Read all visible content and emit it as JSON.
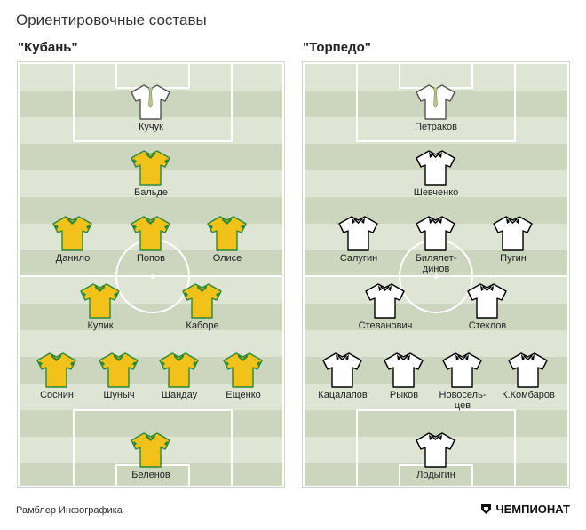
{
  "title": "Ориентировочные составы",
  "footer": {
    "source": "Рамблер Инфографика",
    "brand": "ЧЕМПИОНАТ"
  },
  "teams": [
    {
      "name": "\"Кубань\"",
      "goalkeeper": "Кучук",
      "players": [
        "Бальде",
        "Данило",
        "Попов",
        "Олисе",
        "Кулик",
        "Каборе",
        "Соснин",
        "Шуныч",
        "Шандау",
        "Ещенко",
        "Беленов"
      ]
    },
    {
      "name": "\"Торпедо\"",
      "goalkeeper": "Петраков",
      "players": [
        "Шевченко",
        "Салугин",
        "Билялет-\nдинов",
        "Пугин",
        "Стеванович",
        "Стеклов",
        "Кацалапов",
        "Рыков",
        "Новосель-\nцев",
        "К.Комбаров",
        "Лодыгин"
      ]
    }
  ],
  "colors": {
    "kuban_shirt": "#f2c21a",
    "kuban_trim": "#2a8a3a",
    "torpedo_shirt": "#ffffff",
    "torpedo_trim": "#000000",
    "goalkeeper_shirt": "#ffffff",
    "goalkeeper_tie": "#b9c98a"
  }
}
